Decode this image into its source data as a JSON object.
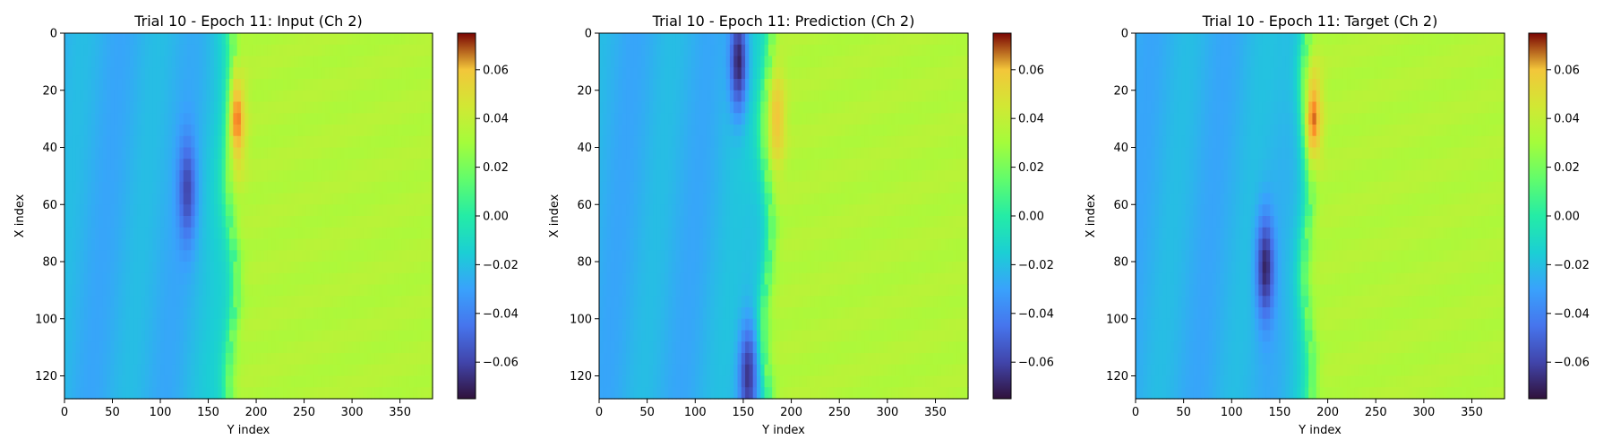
{
  "chart_data": [
    {
      "type": "heatmap",
      "title": "Trial 10 - Epoch 11: Input (Ch 2)",
      "xlabel": "Y index",
      "ylabel": "X index",
      "xlim": [
        0,
        384
      ],
      "ylim": [
        128,
        0
      ],
      "x_ticks": [
        0,
        50,
        100,
        150,
        200,
        250,
        300,
        350
      ],
      "y_ticks": [
        0,
        20,
        40,
        60,
        80,
        100,
        120
      ],
      "colorbar": {
        "range": [
          -0.075,
          0.075
        ],
        "ticks": [
          "0.06",
          "0.04",
          "0.02",
          "0.00",
          "−0.02",
          "−0.04",
          "−0.06"
        ],
        "tick_values": [
          0.06,
          0.04,
          0.02,
          0.0,
          -0.02,
          -0.04,
          -0.06
        ],
        "colormap": "turbo"
      },
      "approx_field": {
        "front_y": 175,
        "left_value": -0.025,
        "right_value": 0.035,
        "features": [
          {
            "x": 30,
            "y": 180,
            "value": 0.07,
            "desc": "max"
          },
          {
            "x": 55,
            "y": 128,
            "value": -0.06,
            "desc": "min"
          }
        ]
      }
    },
    {
      "type": "heatmap",
      "title": "Trial 10 - Epoch 11: Prediction (Ch 2)",
      "xlabel": "Y index",
      "ylabel": "X index",
      "xlim": [
        0,
        384
      ],
      "ylim": [
        128,
        0
      ],
      "x_ticks": [
        0,
        50,
        100,
        150,
        200,
        250,
        300,
        350
      ],
      "y_ticks": [
        0,
        20,
        40,
        60,
        80,
        100,
        120
      ],
      "colorbar": {
        "range": [
          -0.075,
          0.075
        ],
        "ticks": [
          "0.06",
          "0.04",
          "0.02",
          "0.00",
          "−0.02",
          "−0.04",
          "−0.06"
        ],
        "tick_values": [
          0.06,
          0.04,
          0.02,
          0.0,
          -0.02,
          -0.04,
          -0.06
        ],
        "colormap": "turbo"
      },
      "approx_field": {
        "front_y": 175,
        "left_value": -0.025,
        "right_value": 0.035,
        "features": [
          {
            "x": 10,
            "y": 145,
            "value": -0.07,
            "desc": "min"
          },
          {
            "x": 30,
            "y": 185,
            "value": 0.06,
            "desc": "max"
          },
          {
            "x": 120,
            "y": 155,
            "value": -0.065,
            "desc": "min"
          }
        ]
      }
    },
    {
      "type": "heatmap",
      "title": "Trial 10 - Epoch 11: Target (Ch 2)",
      "xlabel": "Y index",
      "ylabel": "X index",
      "xlim": [
        0,
        384
      ],
      "ylim": [
        128,
        0
      ],
      "x_ticks": [
        0,
        50,
        100,
        150,
        200,
        250,
        300,
        350
      ],
      "y_ticks": [
        0,
        20,
        40,
        60,
        80,
        100,
        120
      ],
      "colorbar": {
        "range": [
          -0.075,
          0.075
        ],
        "ticks": [
          "0.06",
          "0.04",
          "0.02",
          "0.00",
          "−0.02",
          "−0.04",
          "−0.06"
        ],
        "tick_values": [
          0.06,
          0.04,
          0.02,
          0.0,
          -0.02,
          -0.04,
          -0.06
        ],
        "colormap": "turbo"
      },
      "approx_field": {
        "front_y": 180,
        "left_value": -0.025,
        "right_value": 0.035,
        "features": [
          {
            "x": 30,
            "y": 185,
            "value": 0.07,
            "desc": "max"
          },
          {
            "x": 82,
            "y": 135,
            "value": -0.07,
            "desc": "min"
          }
        ]
      }
    }
  ]
}
